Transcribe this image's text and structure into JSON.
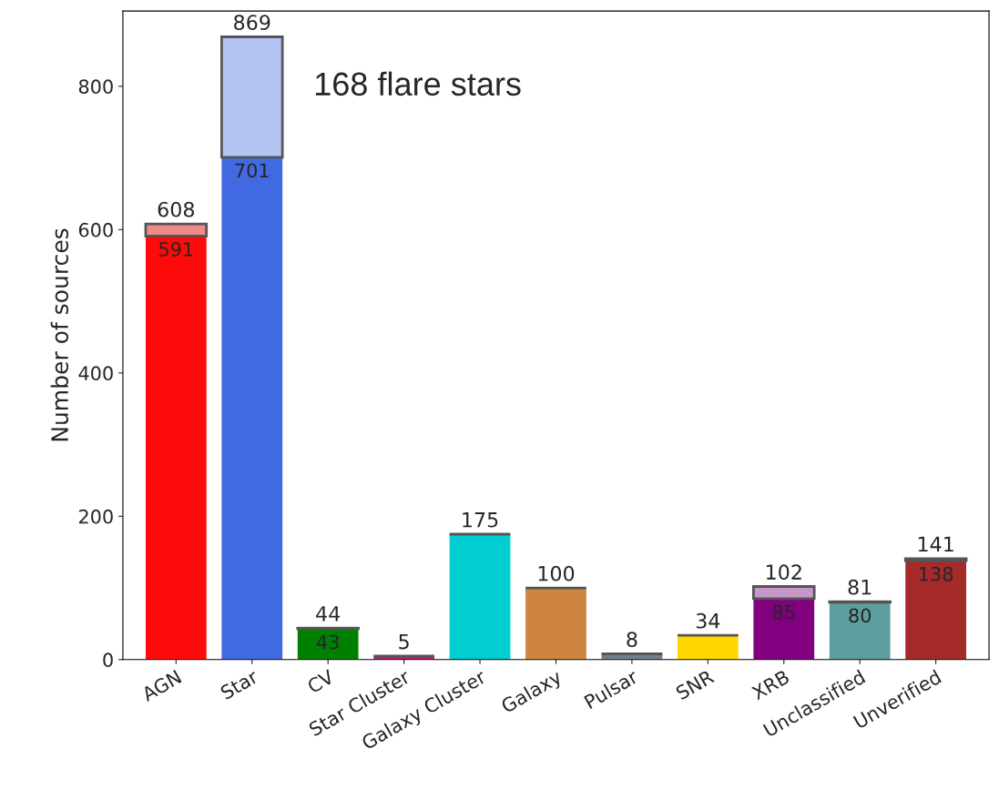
{
  "chart_data": {
    "type": "bar",
    "ylabel": "Number of sources",
    "categories": [
      "AGN",
      "Star",
      "CV",
      "Star Cluster",
      "Galaxy Cluster",
      "Galaxy",
      "Pulsar",
      "SNR",
      "XRB",
      "Unclassified",
      "Unverified"
    ],
    "stacked": true,
    "series": [
      {
        "colors": [
          "#ff0a0a",
          "#4169e1",
          "#008000",
          "#c71585",
          "#00ced1",
          "#cd853f",
          "#708090",
          "#ffd700",
          "#800080",
          "#5f9ea0",
          "#a52a2a"
        ],
        "values": [
          591,
          701,
          43,
          5,
          175,
          100,
          8,
          34,
          85,
          80,
          138
        ],
        "value_labels": [
          "591",
          "701",
          "43",
          null,
          null,
          null,
          null,
          null,
          "85",
          "80",
          "138"
        ]
      },
      {
        "colors": [
          "#f08a8a",
          "#b3c3f2",
          "#80c080",
          "#555555",
          "#555555",
          "#555555",
          "#555555",
          "#555555",
          "#c896c8",
          "#afcfd0",
          "#d29595"
        ],
        "values": [
          17,
          168,
          1,
          0,
          0,
          0,
          0,
          0,
          17,
          1,
          3
        ]
      }
    ],
    "totals": [
      "608",
      "869",
      "44",
      "5",
      "175",
      "100",
      "8",
      "34",
      "102",
      "81",
      "141"
    ],
    "ylim": [
      0,
      905
    ],
    "yticks": [
      0,
      200,
      400,
      600,
      800
    ],
    "annotations": [
      "168 flare stars"
    ],
    "grid": false,
    "legend": false
  }
}
